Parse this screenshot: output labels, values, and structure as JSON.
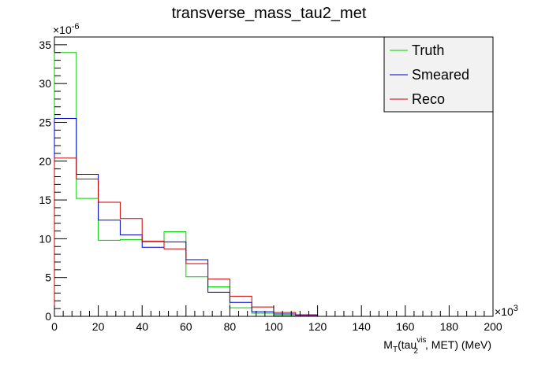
{
  "chart_data": {
    "type": "histogram",
    "title": "transverse_mass_tau2_met",
    "xlabel": {
      "main": "M",
      "sub1": "T",
      "mid": "(tau",
      "sup": "vis",
      "sub2": "2",
      "end": ", MET) (MeV)"
    },
    "ylabel": "",
    "x_exponent": "×10",
    "x_exponent_power": "3",
    "y_exponent": "×10",
    "y_exponent_power": "-6",
    "xlim": [
      0,
      200
    ],
    "ylim": [
      0,
      36
    ],
    "bin_edges": [
      0,
      10,
      20,
      30,
      40,
      50,
      60,
      70,
      80,
      90,
      100,
      110,
      120
    ],
    "x_ticks": [
      "0",
      "20",
      "40",
      "60",
      "80",
      "100",
      "120",
      "140",
      "160",
      "180",
      "200"
    ],
    "y_ticks": [
      "0",
      "5",
      "10",
      "15",
      "20",
      "25",
      "30",
      "35"
    ],
    "grid": false,
    "legend_position": "top-right",
    "series": [
      {
        "name": "Truth",
        "color": "#00cc00",
        "values": [
          34.0,
          15.2,
          9.8,
          9.9,
          9.6,
          10.9,
          5.1,
          3.8,
          1.1,
          0.4,
          0.1,
          0.05
        ]
      },
      {
        "name": "Smeared",
        "color": "#0000cc",
        "values": [
          25.5,
          18.3,
          12.4,
          10.5,
          8.9,
          9.6,
          7.3,
          3.1,
          1.8,
          0.6,
          0.3,
          0.1
        ]
      },
      {
        "name": "Reco",
        "color": "#cc0000",
        "values": [
          20.4,
          17.7,
          14.7,
          12.6,
          9.7,
          8.7,
          6.8,
          4.8,
          2.6,
          1.2,
          0.5,
          0.2
        ]
      }
    ]
  }
}
